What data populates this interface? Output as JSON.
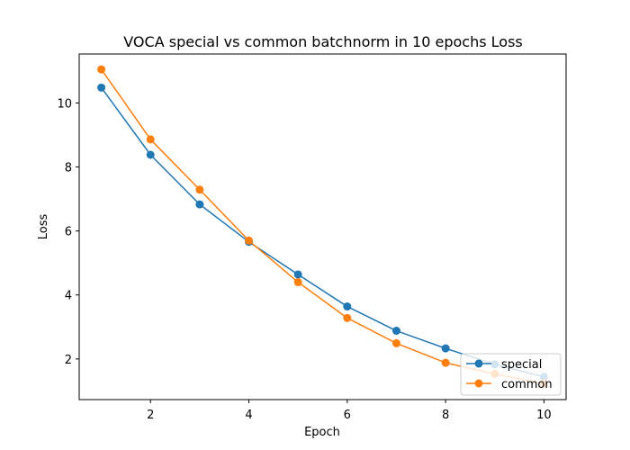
{
  "chart_data": {
    "type": "line",
    "title": "VOCA special vs common batchnorm in 10 epochs Loss",
    "xlabel": "Epoch",
    "ylabel": "Loss",
    "x": [
      1,
      2,
      3,
      4,
      5,
      6,
      7,
      8,
      9,
      10
    ],
    "xlim": [
      0.55,
      10.45
    ],
    "ylim": [
      0.73,
      11.53
    ],
    "xticks": [
      2,
      4,
      6,
      8,
      10
    ],
    "yticks": [
      2,
      4,
      6,
      8,
      10
    ],
    "grid": false,
    "legend_position": "lower right",
    "series": [
      {
        "name": "special",
        "color": "#1f77b4",
        "marker": "circle",
        "values": [
          10.48,
          8.38,
          6.83,
          5.66,
          4.64,
          3.64,
          2.88,
          2.33,
          1.83,
          1.44
        ]
      },
      {
        "name": "common",
        "color": "#ff7f0e",
        "marker": "circle",
        "values": [
          11.05,
          8.86,
          7.29,
          5.7,
          4.4,
          3.28,
          2.49,
          1.88,
          1.53,
          1.23
        ]
      }
    ]
  }
}
